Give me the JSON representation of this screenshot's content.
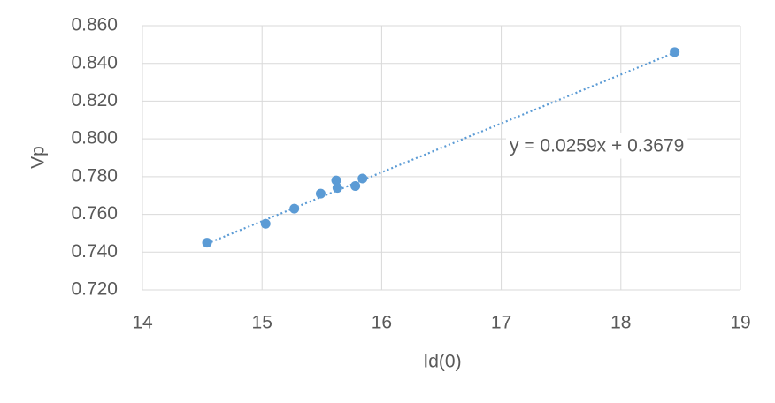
{
  "chart_data": {
    "type": "scatter",
    "x_label": "Id(0)",
    "y_label": "Vp",
    "series": [
      {
        "color": "#5b9bd5",
        "x": [
          14.54,
          15.03,
          15.27,
          15.49,
          15.62,
          15.63,
          15.78,
          15.84,
          18.45
        ],
        "values": [
          0.745,
          0.755,
          0.763,
          0.771,
          0.778,
          0.774,
          0.775,
          0.779,
          0.846
        ]
      }
    ],
    "trendline": {
      "label": "y = 0.0259x + 0.3679",
      "slope": 0.0259,
      "intercept": 0.3679,
      "style": "dotted"
    },
    "xlim": [
      14,
      19
    ],
    "xticks": [
      14,
      15,
      16,
      17,
      18,
      19
    ],
    "ylim": [
      0.72,
      0.86
    ],
    "yticks": [
      {
        "value": 0.72,
        "label": "0.720"
      },
      {
        "value": 0.74,
        "label": "0.740"
      },
      {
        "value": 0.76,
        "label": "0.760"
      },
      {
        "value": 0.78,
        "label": "0.780"
      },
      {
        "value": 0.8,
        "label": "0.800"
      },
      {
        "value": 0.82,
        "label": "0.820"
      },
      {
        "value": 0.84,
        "label": "0.840"
      },
      {
        "value": 0.86,
        "label": "0.860"
      }
    ],
    "grid": true
  }
}
